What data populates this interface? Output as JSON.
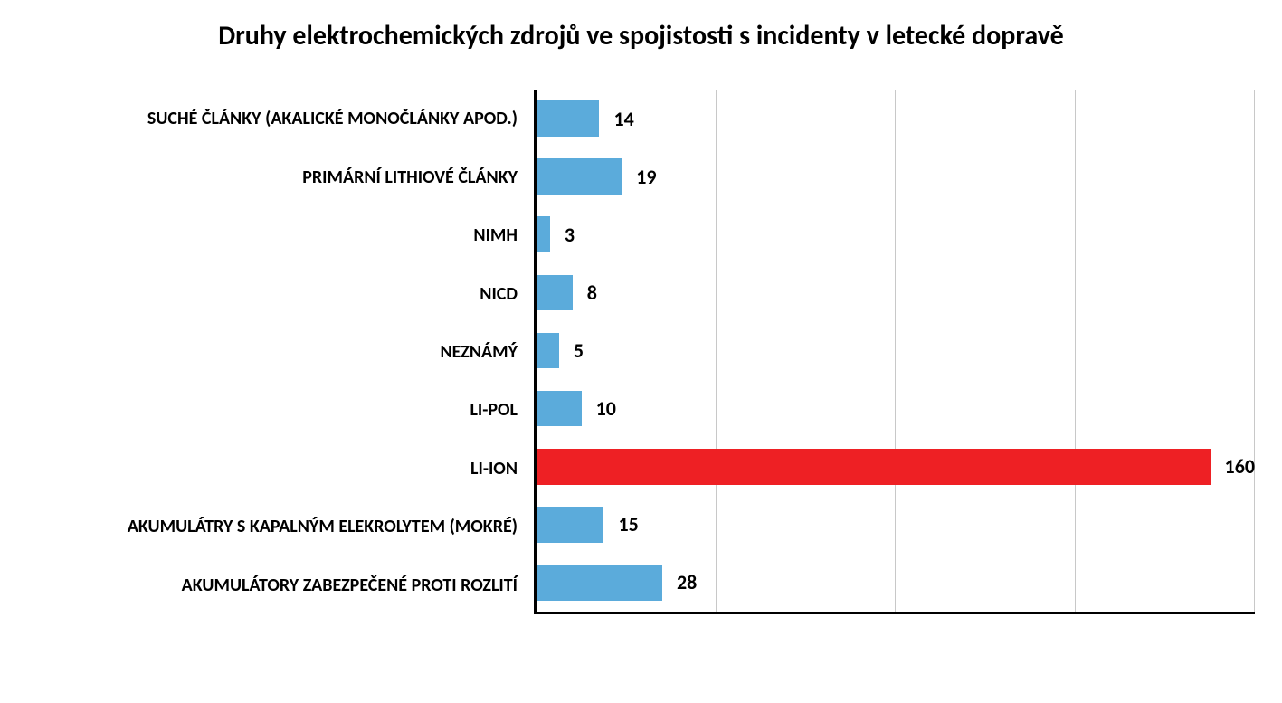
{
  "chart": {
    "type": "horizontal-bar",
    "title": "Druhy elektrochemických zdrojů ve spojistosti s incidenty v letecké dopravě",
    "title_fontsize": 30,
    "title_fontweight": "bold",
    "title_color": "#000000",
    "background_color": "#ffffff",
    "axis_color": "#000000",
    "grid_color": "#c8c8c8",
    "grid_segments": 4,
    "xlim_max": 160,
    "bar_height_pct": 62,
    "label_fontsize": 20,
    "label_fontweight": "bold",
    "label_color": "#000000",
    "value_fontsize": 22,
    "value_fontweight": "bold",
    "value_color": "#000000",
    "default_bar_color": "#5babdb",
    "highlight_bar_color": "#ee2024",
    "categories": [
      {
        "label": "SUCHÉ ČLÁNKY (AKALICKÉ MONOČLÁNKY APOD.)",
        "value": 14,
        "color": "#5babdb"
      },
      {
        "label": "PRIMÁRNÍ LITHIOVÉ ČLÁNKY",
        "value": 19,
        "color": "#5babdb"
      },
      {
        "label": "NIMH",
        "value": 3,
        "color": "#5babdb"
      },
      {
        "label": "NICD",
        "value": 8,
        "color": "#5babdb"
      },
      {
        "label": "NEZNÁMÝ",
        "value": 5,
        "color": "#5babdb"
      },
      {
        "label": "LI-POL",
        "value": 10,
        "color": "#5babdb"
      },
      {
        "label": "LI-ION",
        "value": 160,
        "color": "#ee2024"
      },
      {
        "label": "AKUMULÁTRY S KAPALNÝM ELEKROLYTEM (MOKRÉ)",
        "value": 15,
        "color": "#5babdb"
      },
      {
        "label": "AKUMULÁTORY ZABEZPEČENÉ PROTI ROZLITÍ",
        "value": 28,
        "color": "#5babdb"
      }
    ]
  }
}
